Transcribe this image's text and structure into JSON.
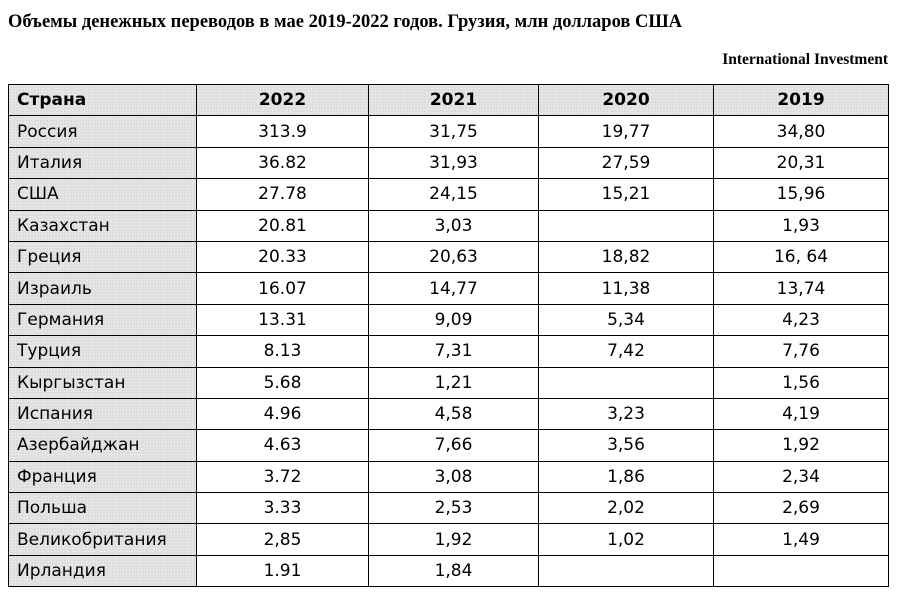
{
  "title": "Объемы денежных переводов в мае 2019-2022 годов. Грузия, млн долларов США",
  "source": "International Investment",
  "table": {
    "headers": [
      "Страна",
      "2022",
      "2021",
      "2020",
      "2019"
    ],
    "rows": [
      {
        "country": "Россия",
        "v2022": "313.9",
        "v2021": "31,75",
        "v2020": "19,77",
        "v2019": "34,80"
      },
      {
        "country": "Италия",
        "v2022": "36.82",
        "v2021": "31,93",
        "v2020": "27,59",
        "v2019": "20,31"
      },
      {
        "country": "США",
        "v2022": "27.78",
        "v2021": "24,15",
        "v2020": "15,21",
        "v2019": "15,96"
      },
      {
        "country": "Казахстан",
        "v2022": "20.81",
        "v2021": "3,03",
        "v2020": "",
        "v2019": "1,93"
      },
      {
        "country": "Греция",
        "v2022": "20.33",
        "v2021": "20,63",
        "v2020": "18,82",
        "v2019": "16, 64"
      },
      {
        "country": "Израиль",
        "v2022": "16.07",
        "v2021": "14,77",
        "v2020": "11,38",
        "v2019": "13,74"
      },
      {
        "country": "Германия",
        "v2022": "13.31",
        "v2021": "9,09",
        "v2020": "5,34",
        "v2019": "4,23"
      },
      {
        "country": "Турция",
        "v2022": "8.13",
        "v2021": "7,31",
        "v2020": "7,42",
        "v2019": "7,76"
      },
      {
        "country": "Кыргызстан",
        "v2022": "5.68",
        "v2021": "1,21",
        "v2020": "",
        "v2019": "1,56"
      },
      {
        "country": "Испания",
        "v2022": "4.96",
        "v2021": "4,58",
        "v2020": "3,23",
        "v2019": "4,19"
      },
      {
        "country": "Азербайджан",
        "v2022": "4.63",
        "v2021": "7,66",
        "v2020": "3,56",
        "v2019": "1,92"
      },
      {
        "country": "Франция",
        "v2022": "3.72",
        "v2021": "3,08",
        "v2020": "1,86",
        "v2019": "2,34"
      },
      {
        "country": "Польша",
        "v2022": "3.33",
        "v2021": "2,53",
        "v2020": "2,02",
        "v2019": "2,69"
      },
      {
        "country": "Великобритания",
        "v2022": "2,85",
        "v2021": "1,92",
        "v2020": "1,02",
        "v2019": "1,49"
      },
      {
        "country": "Ирландия",
        "v2022": "1.91",
        "v2021": "1,84",
        "v2020": "",
        "v2019": ""
      }
    ]
  }
}
